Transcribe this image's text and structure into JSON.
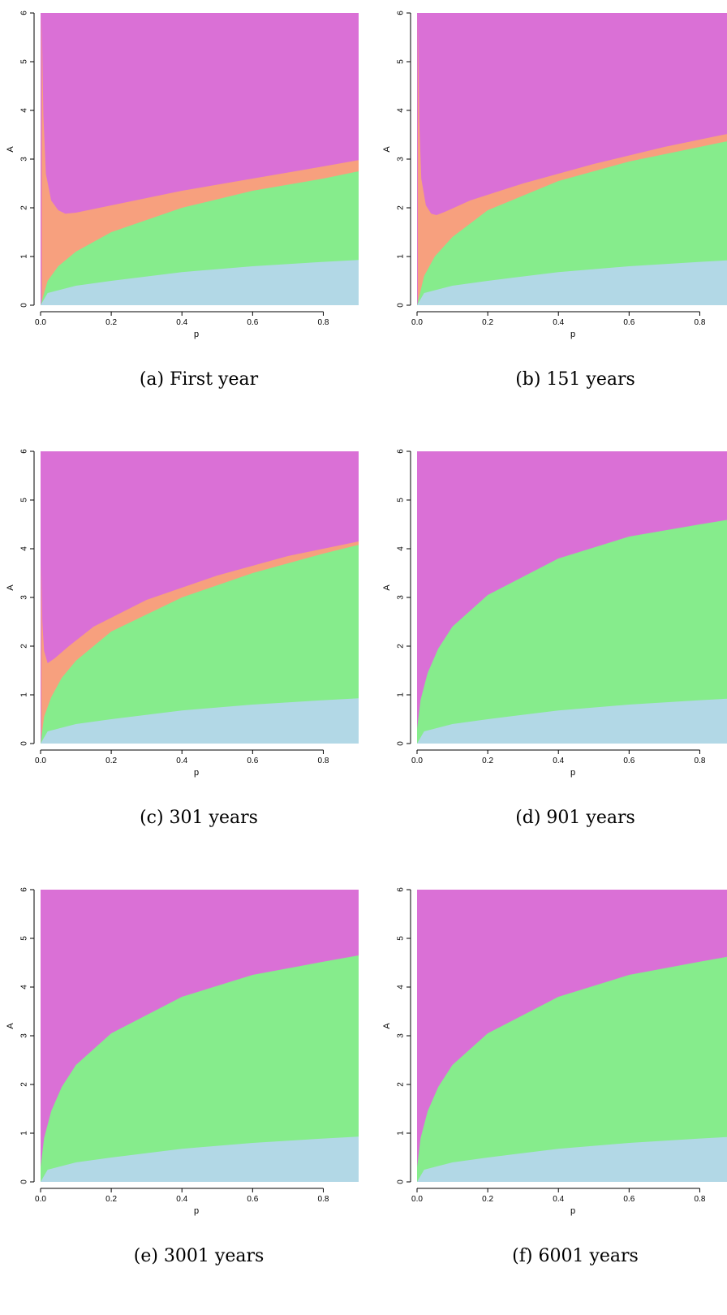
{
  "figure": {
    "colors": {
      "magenta": "#DA70D6",
      "salmon": "#F7A07E",
      "green": "#86EC8C",
      "lightblue": "#B2D8E6"
    }
  },
  "chart_data": [
    {
      "type": "area",
      "caption": "(a) First year",
      "xlabel": "p",
      "ylabel": "A",
      "xlim": [
        0,
        0.9
      ],
      "ylim": [
        0,
        6
      ],
      "xticks": [
        "0.0",
        "0.2",
        "0.4",
        "0.6",
        "0.8"
      ],
      "yticks": [
        "0",
        "1",
        "2",
        "3",
        "4",
        "5",
        "6"
      ],
      "regions_bottom_to_top": [
        "lightblue",
        "green",
        "salmon",
        "magenta"
      ],
      "boundaries": {
        "lightblue_green": {
          "x": [
            0,
            0.02,
            0.1,
            0.2,
            0.4,
            0.6,
            0.8,
            0.9
          ],
          "y": [
            0,
            0.25,
            0.4,
            0.5,
            0.68,
            0.8,
            0.89,
            0.93
          ]
        },
        "green_salmon": {
          "x": [
            0,
            0.02,
            0.05,
            0.1,
            0.2,
            0.4,
            0.6,
            0.8,
            0.9
          ],
          "y": [
            0,
            0.5,
            0.8,
            1.1,
            1.5,
            2.0,
            2.35,
            2.6,
            2.75
          ]
        },
        "salmon_magenta": {
          "x": [
            0.003,
            0.008,
            0.015,
            0.03,
            0.05,
            0.07,
            0.1,
            0.2,
            0.4,
            0.6,
            0.8,
            0.9
          ],
          "y": [
            6.0,
            3.9,
            2.7,
            2.15,
            1.95,
            1.88,
            1.9,
            2.05,
            2.35,
            2.6,
            2.85,
            2.98
          ]
        }
      }
    },
    {
      "type": "area",
      "caption": "(b) 151 years",
      "xlabel": "p",
      "ylabel": "A",
      "xlim": [
        0,
        0.9
      ],
      "ylim": [
        0,
        6
      ],
      "xticks": [
        "0.0",
        "0.2",
        "0.4",
        "0.6",
        "0.8"
      ],
      "yticks": [
        "0",
        "1",
        "2",
        "3",
        "4",
        "5",
        "6"
      ],
      "regions_bottom_to_top": [
        "lightblue",
        "green",
        "salmon",
        "magenta"
      ],
      "boundaries": {
        "lightblue_green": {
          "x": [
            0,
            0.02,
            0.1,
            0.2,
            0.4,
            0.6,
            0.8,
            0.9
          ],
          "y": [
            0,
            0.25,
            0.4,
            0.5,
            0.68,
            0.8,
            0.89,
            0.93
          ]
        },
        "green_salmon": {
          "x": [
            0,
            0.02,
            0.05,
            0.1,
            0.2,
            0.4,
            0.6,
            0.8,
            0.9
          ],
          "y": [
            0,
            0.6,
            1.0,
            1.4,
            1.95,
            2.55,
            2.95,
            3.25,
            3.4
          ]
        },
        "salmon_magenta": {
          "x": [
            0.002,
            0.006,
            0.012,
            0.025,
            0.04,
            0.055,
            0.08,
            0.15,
            0.3,
            0.5,
            0.7,
            0.9
          ],
          "y": [
            6.0,
            3.8,
            2.6,
            2.05,
            1.88,
            1.85,
            1.92,
            2.15,
            2.5,
            2.9,
            3.25,
            3.55
          ]
        }
      }
    },
    {
      "type": "area",
      "caption": "(c) 301 years",
      "xlabel": "p",
      "ylabel": "A",
      "xlim": [
        0,
        0.9
      ],
      "ylim": [
        0,
        6
      ],
      "xticks": [
        "0.0",
        "0.2",
        "0.4",
        "0.6",
        "0.8"
      ],
      "yticks": [
        "0",
        "1",
        "2",
        "3",
        "4",
        "5",
        "6"
      ],
      "regions_bottom_to_top": [
        "lightblue",
        "green",
        "salmon",
        "magenta"
      ],
      "boundaries": {
        "lightblue_green": {
          "x": [
            0,
            0.02,
            0.1,
            0.2,
            0.4,
            0.6,
            0.8,
            0.9
          ],
          "y": [
            0,
            0.25,
            0.4,
            0.5,
            0.68,
            0.8,
            0.89,
            0.93
          ]
        },
        "green_salmon": {
          "x": [
            0,
            0.01,
            0.03,
            0.06,
            0.1,
            0.2,
            0.4,
            0.6,
            0.8,
            0.9
          ],
          "y": [
            0,
            0.55,
            0.95,
            1.35,
            1.7,
            2.3,
            3.0,
            3.5,
            3.9,
            4.08
          ]
        },
        "salmon_magenta": {
          "x": [
            0.002,
            0.005,
            0.01,
            0.02,
            0.04,
            0.08,
            0.15,
            0.3,
            0.5,
            0.7,
            0.9
          ],
          "y": [
            3.7,
            2.5,
            1.9,
            1.65,
            1.75,
            2.0,
            2.4,
            2.95,
            3.45,
            3.85,
            4.15
          ]
        }
      }
    },
    {
      "type": "area",
      "caption": "(d) 901 years",
      "xlabel": "p",
      "ylabel": "A",
      "xlim": [
        0,
        0.9
      ],
      "ylim": [
        0,
        6
      ],
      "xticks": [
        "0.0",
        "0.2",
        "0.4",
        "0.6",
        "0.8"
      ],
      "yticks": [
        "0",
        "1",
        "2",
        "3",
        "4",
        "5",
        "6"
      ],
      "regions_bottom_to_top": [
        "lightblue",
        "green",
        "magenta"
      ],
      "boundaries": {
        "lightblue_green": {
          "x": [
            0,
            0.02,
            0.1,
            0.2,
            0.4,
            0.6,
            0.8,
            0.9
          ],
          "y": [
            0,
            0.25,
            0.4,
            0.5,
            0.68,
            0.8,
            0.89,
            0.93
          ]
        },
        "green_magenta": {
          "x": [
            0,
            0.01,
            0.03,
            0.06,
            0.1,
            0.2,
            0.4,
            0.6,
            0.8,
            0.9
          ],
          "y": [
            0.3,
            0.9,
            1.45,
            1.95,
            2.4,
            3.05,
            3.8,
            4.25,
            4.5,
            4.62
          ]
        }
      }
    },
    {
      "type": "area",
      "caption": "(e) 3001 years",
      "xlabel": "p",
      "ylabel": "A",
      "xlim": [
        0,
        0.9
      ],
      "ylim": [
        0,
        6
      ],
      "xticks": [
        "0.0",
        "0.2",
        "0.4",
        "0.6",
        "0.8"
      ],
      "yticks": [
        "0",
        "1",
        "2",
        "3",
        "4",
        "5",
        "6"
      ],
      "regions_bottom_to_top": [
        "lightblue",
        "green",
        "magenta"
      ],
      "boundaries": {
        "lightblue_green": {
          "x": [
            0,
            0.02,
            0.1,
            0.2,
            0.4,
            0.6,
            0.8,
            0.9
          ],
          "y": [
            0,
            0.25,
            0.4,
            0.5,
            0.68,
            0.8,
            0.89,
            0.93
          ]
        },
        "green_magenta": {
          "x": [
            0,
            0.01,
            0.03,
            0.06,
            0.1,
            0.2,
            0.4,
            0.6,
            0.8,
            0.9
          ],
          "y": [
            0.3,
            0.9,
            1.45,
            1.95,
            2.4,
            3.05,
            3.8,
            4.25,
            4.52,
            4.65
          ]
        }
      }
    },
    {
      "type": "area",
      "caption": "(f) 6001 years",
      "xlabel": "p",
      "ylabel": "A",
      "xlim": [
        0,
        0.9
      ],
      "ylim": [
        0,
        6
      ],
      "xticks": [
        "0.0",
        "0.2",
        "0.4",
        "0.6",
        "0.8"
      ],
      "yticks": [
        "0",
        "1",
        "2",
        "3",
        "4",
        "5",
        "6"
      ],
      "regions_bottom_to_top": [
        "lightblue",
        "green",
        "magenta"
      ],
      "boundaries": {
        "lightblue_green": {
          "x": [
            0,
            0.02,
            0.1,
            0.2,
            0.4,
            0.6,
            0.8,
            0.9
          ],
          "y": [
            0,
            0.25,
            0.4,
            0.5,
            0.68,
            0.8,
            0.89,
            0.93
          ]
        },
        "green_magenta": {
          "x": [
            0,
            0.01,
            0.03,
            0.06,
            0.1,
            0.2,
            0.4,
            0.6,
            0.8,
            0.9
          ],
          "y": [
            0.3,
            0.9,
            1.45,
            1.95,
            2.4,
            3.05,
            3.8,
            4.25,
            4.52,
            4.65
          ]
        }
      }
    }
  ]
}
